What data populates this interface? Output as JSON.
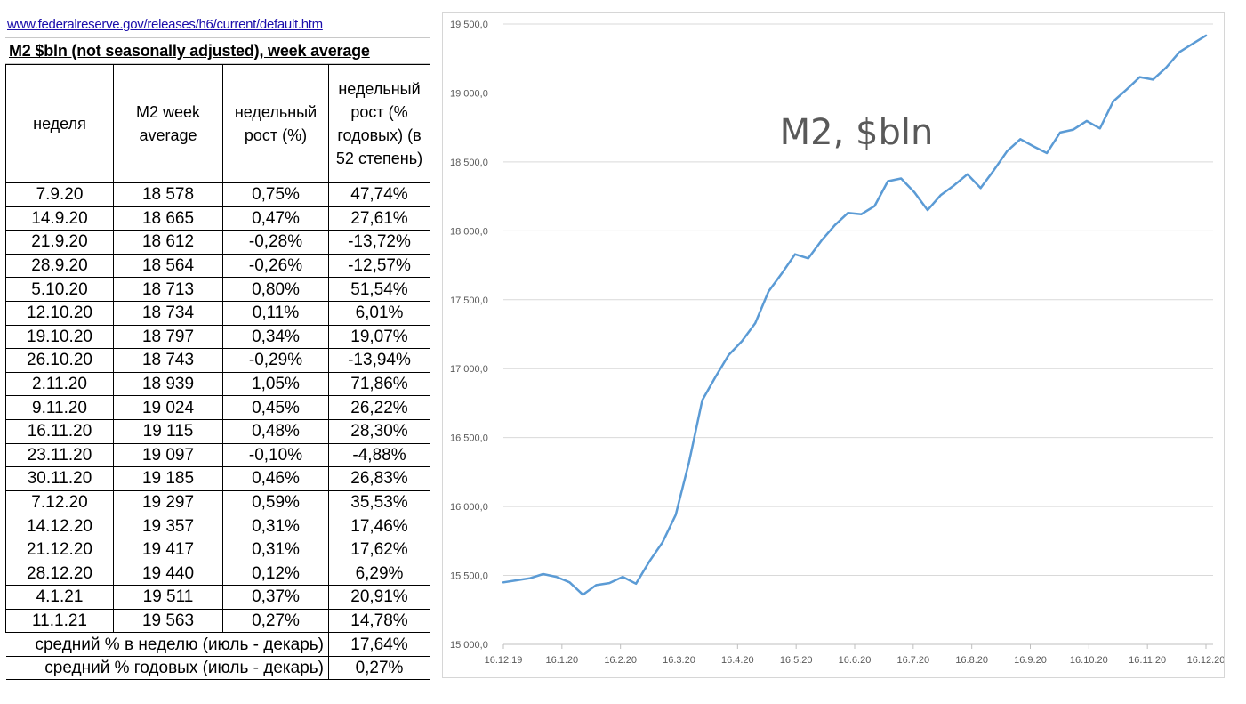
{
  "sheet": {
    "link": "www.federalreserve.gov/releases/h6/current/default.htm",
    "title": "M2 $bln (not seasonally adjusted), week average",
    "headers": [
      "неделя",
      "M2 week average",
      "недельный рост (%)",
      "недельный рост (% годовых) (в 52 степень)"
    ],
    "rows": [
      [
        "7.9.20",
        "18 578",
        "0,75%",
        "47,74%"
      ],
      [
        "14.9.20",
        "18 665",
        "0,47%",
        "27,61%"
      ],
      [
        "21.9.20",
        "18 612",
        "-0,28%",
        "-13,72%"
      ],
      [
        "28.9.20",
        "18 564",
        "-0,26%",
        "-12,57%"
      ],
      [
        "5.10.20",
        "18 713",
        "0,80%",
        "51,54%"
      ],
      [
        "12.10.20",
        "18 734",
        "0,11%",
        "6,01%"
      ],
      [
        "19.10.20",
        "18 797",
        "0,34%",
        "19,07%"
      ],
      [
        "26.10.20",
        "18 743",
        "-0,29%",
        "-13,94%"
      ],
      [
        "2.11.20",
        "18 939",
        "1,05%",
        "71,86%"
      ],
      [
        "9.11.20",
        "19 024",
        "0,45%",
        "26,22%"
      ],
      [
        "16.11.20",
        "19 115",
        "0,48%",
        "28,30%"
      ],
      [
        "23.11.20",
        "19 097",
        "-0,10%",
        "-4,88%"
      ],
      [
        "30.11.20",
        "19 185",
        "0,46%",
        "26,83%"
      ],
      [
        "7.12.20",
        "19 297",
        "0,59%",
        "35,53%"
      ],
      [
        "14.12.20",
        "19 357",
        "0,31%",
        "17,46%"
      ],
      [
        "21.12.20",
        "19 417",
        "0,31%",
        "17,62%"
      ],
      [
        "28.12.20",
        "19 440",
        "0,12%",
        "6,29%"
      ],
      [
        "4.1.21",
        "19 511",
        "0,37%",
        "20,91%"
      ],
      [
        "11.1.21",
        "19 563",
        "0,27%",
        "14,78%"
      ]
    ],
    "summary": [
      {
        "label": "средний % в неделю (июль - декарь)",
        "value": "17,64%"
      },
      {
        "label": "средний % годовых (июль - декарь)",
        "value": "0,27%"
      }
    ]
  },
  "chart_data": {
    "type": "line",
    "title": "M2, $bln",
    "xlabel": "",
    "ylabel": "",
    "ylim": [
      15000,
      19500
    ],
    "y_ticks": [
      "15 000,0",
      "15 500,0",
      "16 000,0",
      "16 500,0",
      "17 000,0",
      "17 500,0",
      "18 000,0",
      "18 500,0",
      "19 000,0",
      "19 500,0"
    ],
    "x_ticks": [
      "16.12.19",
      "16.1.20",
      "16.2.20",
      "16.3.20",
      "16.4.20",
      "16.5.20",
      "16.6.20",
      "16.7.20",
      "16.8.20",
      "16.9.20",
      "16.10.20",
      "16.11.20",
      "16.12.20"
    ],
    "grid": true,
    "legend": "none",
    "color": "#5b9bd5",
    "series": [
      {
        "x": [
          "16.12.19",
          "23.12.19",
          "30.12.19",
          "6.1.20",
          "13.1.20",
          "20.1.20",
          "27.1.20",
          "3.2.20",
          "10.2.20",
          "17.2.20",
          "24.2.20",
          "2.3.20",
          "9.3.20",
          "16.3.20",
          "23.3.20",
          "30.3.20",
          "6.4.20",
          "13.4.20",
          "20.4.20",
          "27.4.20",
          "4.5.20",
          "11.5.20",
          "18.5.20",
          "25.5.20",
          "1.6.20",
          "8.6.20",
          "15.6.20",
          "22.6.20",
          "29.6.20",
          "6.7.20",
          "13.7.20",
          "20.7.20",
          "27.7.20",
          "3.8.20",
          "10.8.20",
          "17.8.20",
          "24.8.20",
          "31.8.20",
          "7.9.20",
          "14.9.20",
          "21.9.20",
          "28.9.20",
          "5.10.20",
          "12.10.20",
          "19.10.20",
          "26.10.20",
          "2.11.20",
          "9.11.20",
          "16.11.20",
          "23.11.20",
          "30.11.20",
          "7.12.20",
          "14.12.20",
          "21.12.20"
        ],
        "values": [
          15450,
          15465,
          15480,
          15510,
          15490,
          15450,
          15360,
          15430,
          15445,
          15490,
          15440,
          15600,
          15740,
          15940,
          16320,
          16770,
          16940,
          17100,
          17200,
          17330,
          17560,
          17690,
          17830,
          17800,
          17930,
          18040,
          18130,
          18120,
          18180,
          18360,
          18380,
          18280,
          18150,
          18260,
          18330,
          18410,
          18310,
          18440,
          18578,
          18665,
          18612,
          18564,
          18713,
          18734,
          18797,
          18743,
          18939,
          19024,
          19115,
          19097,
          19185,
          19297,
          19357,
          19417
        ]
      }
    ]
  }
}
